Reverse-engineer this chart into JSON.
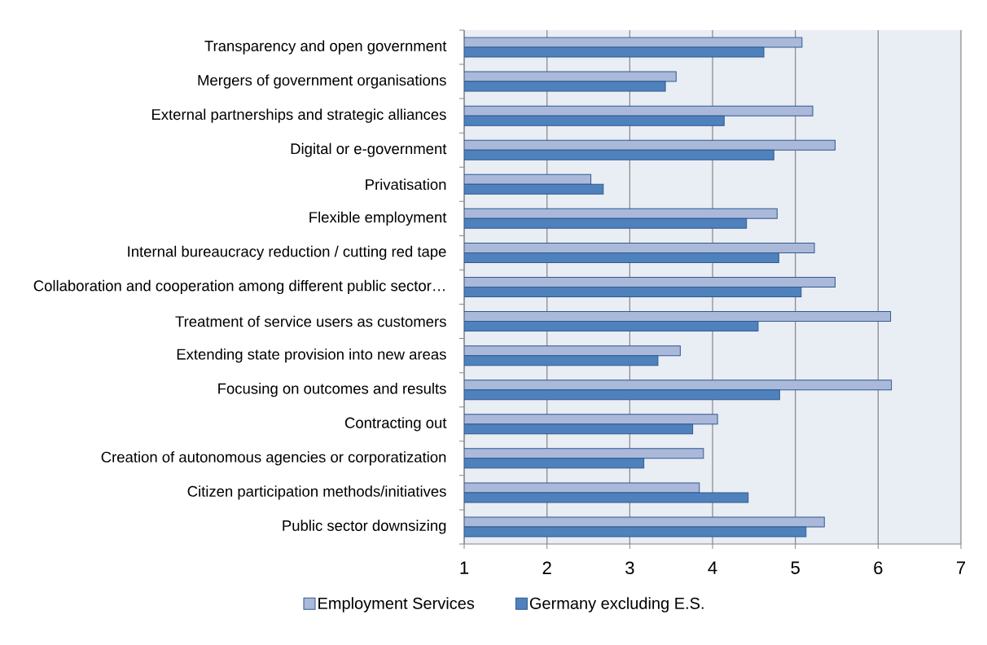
{
  "chart_data": {
    "type": "bar",
    "orientation": "horizontal",
    "categories": [
      "Transparency and open government",
      "Mergers of government organisations",
      "External partnerships and strategic alliances",
      "Digital or e-government",
      "Privatisation",
      "Flexible employment",
      "Internal bureaucracy reduction / cutting red tape",
      "Collaboration and cooperation among different public sector…",
      "Treatment of service users as customers",
      "Extending state provision into new areas",
      "Focusing on outcomes and results",
      "Contracting out",
      "Creation of autonomous agencies or corporatization",
      "Citizen participation methods/initiatives",
      "Public sector downsizing"
    ],
    "series": [
      {
        "name": "Employment Services",
        "color": "#aab9da",
        "values": [
          5.08,
          3.56,
          5.21,
          5.48,
          2.53,
          4.78,
          5.23,
          5.48,
          6.15,
          3.61,
          6.16,
          4.06,
          3.89,
          3.84,
          5.35
        ]
      },
      {
        "name": "Germany excluding E.S.",
        "color": "#4f81bd",
        "values": [
          4.62,
          3.43,
          4.14,
          4.74,
          2.68,
          4.41,
          4.8,
          5.07,
          4.55,
          3.34,
          4.81,
          3.76,
          3.17,
          4.43,
          5.13
        ]
      }
    ],
    "xlim": [
      1,
      7
    ],
    "xticks": [
      1,
      2,
      3,
      4,
      5,
      6,
      7
    ],
    "grid": "x",
    "legend": "bottom"
  }
}
